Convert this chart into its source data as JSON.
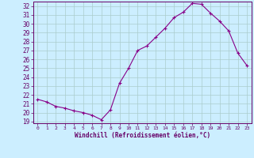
{
  "x": [
    0,
    1,
    2,
    3,
    4,
    5,
    6,
    7,
    8,
    9,
    10,
    11,
    12,
    13,
    14,
    15,
    16,
    17,
    18,
    19,
    20,
    21,
    22,
    23
  ],
  "y": [
    21.5,
    21.2,
    20.7,
    20.5,
    20.2,
    20.0,
    19.7,
    19.2,
    20.3,
    23.3,
    25.0,
    27.0,
    27.5,
    28.5,
    29.5,
    30.7,
    31.3,
    32.3,
    32.2,
    31.2,
    30.3,
    29.2,
    26.7,
    25.3
  ],
  "xlim": [
    -0.5,
    23.5
  ],
  "ylim": [
    18.8,
    32.5
  ],
  "yticks": [
    19,
    20,
    21,
    22,
    23,
    24,
    25,
    26,
    27,
    28,
    29,
    30,
    31,
    32
  ],
  "xticks": [
    0,
    1,
    2,
    3,
    4,
    5,
    6,
    7,
    8,
    9,
    10,
    11,
    12,
    13,
    14,
    15,
    16,
    17,
    18,
    19,
    20,
    21,
    22,
    23
  ],
  "xlabel": "Windchill (Refroidissement éolien,°C)",
  "line_color": "#880088",
  "marker": "+",
  "bg_color": "#cceeff",
  "grid_color": "#aacccc",
  "tick_label_color": "#660066",
  "axis_color": "#660066"
}
